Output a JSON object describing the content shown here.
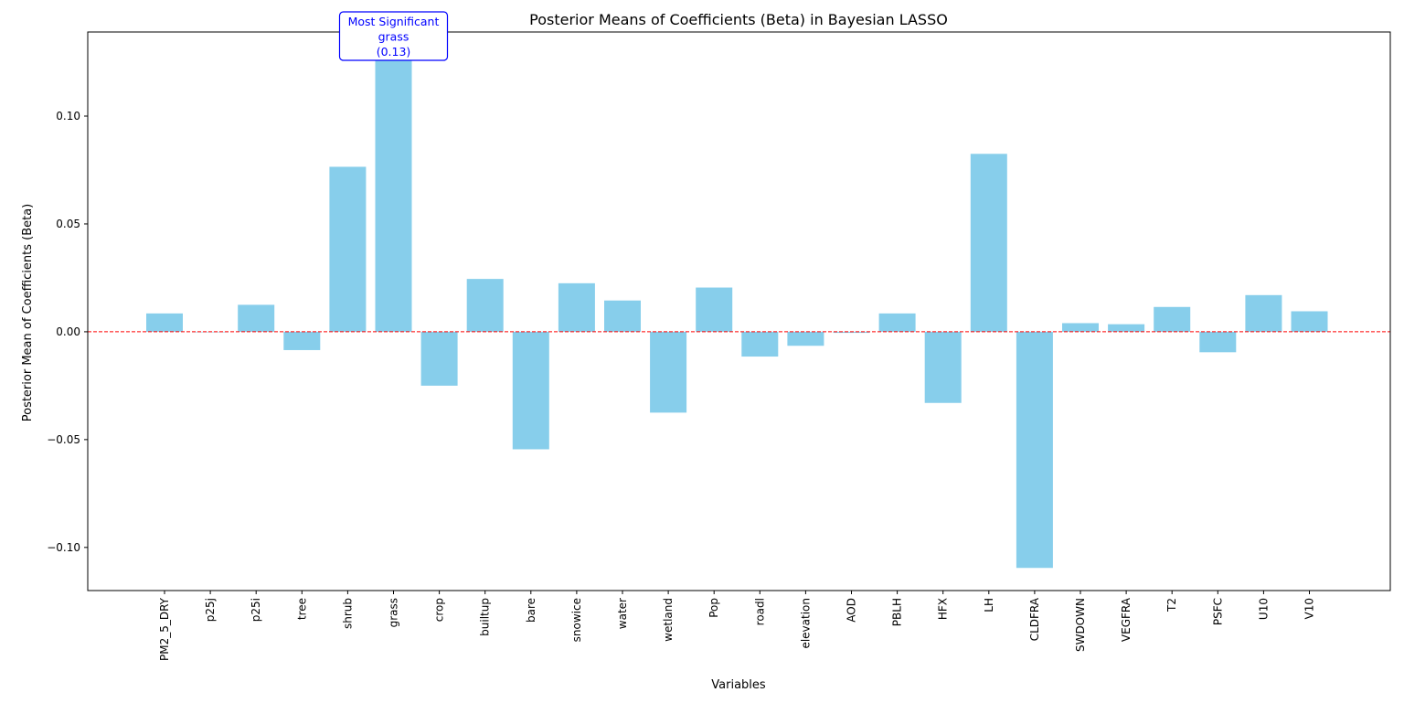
{
  "chart_data": {
    "type": "bar",
    "title": "Posterior Means of Coefficients (Beta) in Bayesian LASSO",
    "xlabel": "Variables",
    "ylabel": "Posterior Mean of Coefficients (Beta)",
    "ylim": [
      -0.12,
      0.139
    ],
    "yticks": [
      {
        "value": 0.1,
        "label": "0.10"
      },
      {
        "value": 0.05,
        "label": "0.05"
      },
      {
        "value": 0.0,
        "label": "0.00"
      },
      {
        "value": -0.05,
        "label": "−0.05"
      },
      {
        "value": -0.1,
        "label": "−0.10"
      }
    ],
    "categories": [
      "PM2_5_DRY",
      "p25j",
      "p25i",
      "tree",
      "shrub",
      "grass",
      "crop",
      "builtup",
      "bare",
      "snowice",
      "water",
      "wetland",
      "Pop",
      "roadl",
      "elevation",
      "AOD",
      "PBLH",
      "HFX",
      "LH",
      "CLDFRA",
      "SWDOWN",
      "VEGFRA",
      "T2",
      "PSFC",
      "U10",
      "V10"
    ],
    "values": [
      0.0085,
      0.0,
      0.0125,
      -0.0085,
      0.0765,
      0.128,
      -0.025,
      0.0245,
      -0.0545,
      0.0225,
      0.0145,
      -0.0375,
      0.0205,
      -0.0115,
      -0.0065,
      -0.0005,
      0.0085,
      -0.033,
      0.0825,
      -0.1095,
      0.004,
      0.0035,
      0.0115,
      -0.0095,
      0.017,
      0.0095
    ],
    "bar_color": "#87ceeb",
    "reference_line": {
      "value": 0,
      "color": "#ff0000",
      "style": "dashed"
    },
    "annotation": {
      "lines": [
        "Most Significant",
        "grass",
        "(0.13)"
      ],
      "category": "grass",
      "color": "#0000ff"
    },
    "grid": false,
    "legend": false
  }
}
